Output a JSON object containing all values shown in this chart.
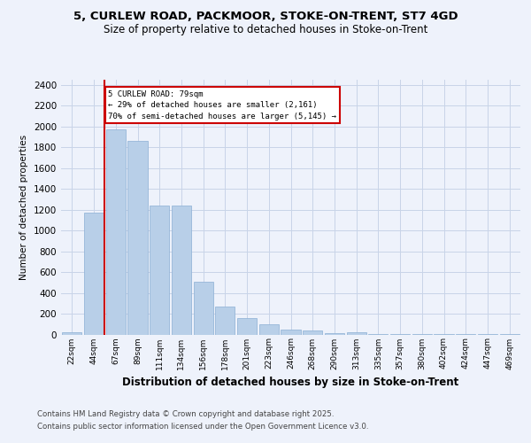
{
  "title_line1": "5, CURLEW ROAD, PACKMOOR, STOKE-ON-TRENT, ST7 4GD",
  "title_line2": "Size of property relative to detached houses in Stoke-on-Trent",
  "xlabel": "Distribution of detached houses by size in Stoke-on-Trent",
  "ylabel": "Number of detached properties",
  "categories": [
    "22sqm",
    "44sqm",
    "67sqm",
    "89sqm",
    "111sqm",
    "134sqm",
    "156sqm",
    "178sqm",
    "201sqm",
    "223sqm",
    "246sqm",
    "268sqm",
    "290sqm",
    "313sqm",
    "335sqm",
    "357sqm",
    "380sqm",
    "402sqm",
    "424sqm",
    "447sqm",
    "469sqm"
  ],
  "values": [
    25,
    1170,
    1970,
    1860,
    1240,
    1240,
    510,
    270,
    155,
    100,
    45,
    40,
    15,
    20,
    5,
    5,
    5,
    5,
    3,
    2,
    2
  ],
  "bar_color": "#b8cfe8",
  "bar_edge_color": "#8bafd4",
  "property_line_index": 2,
  "annotation_title": "5 CURLEW ROAD: 79sqm",
  "annotation_line1": "← 29% of detached houses are smaller (2,161)",
  "annotation_line2": "70% of semi-detached houses are larger (5,145) →",
  "annotation_box_color": "#cc0000",
  "footer_line1": "Contains HM Land Registry data © Crown copyright and database right 2025.",
  "footer_line2": "Contains public sector information licensed under the Open Government Licence v3.0.",
  "background_color": "#eef2fb",
  "grid_color": "#c8d4e8",
  "ylim": [
    0,
    2450
  ],
  "yticks": [
    0,
    200,
    400,
    600,
    800,
    1000,
    1200,
    1400,
    1600,
    1800,
    2000,
    2200,
    2400
  ]
}
